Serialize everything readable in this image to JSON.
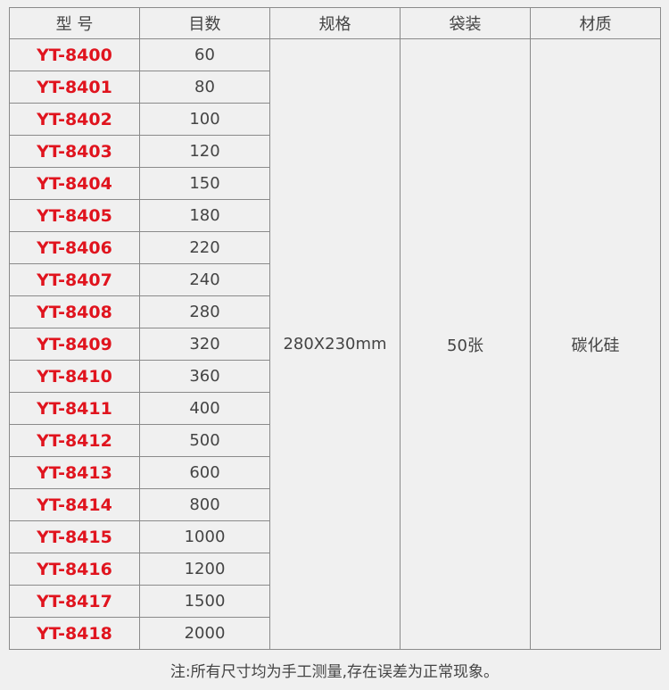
{
  "headers": [
    "型 号",
    "目数",
    "规格",
    "袋装",
    "材质"
  ],
  "rows": [
    {
      "model": "YT-8400",
      "mesh": "60"
    },
    {
      "model": "YT-8401",
      "mesh": "80"
    },
    {
      "model": "YT-8402",
      "mesh": "100"
    },
    {
      "model": "YT-8403",
      "mesh": "120"
    },
    {
      "model": "YT-8404",
      "mesh": "150"
    },
    {
      "model": "YT-8405",
      "mesh": "180"
    },
    {
      "model": "YT-8406",
      "mesh": "220"
    },
    {
      "model": "YT-8407",
      "mesh": "240"
    },
    {
      "model": "YT-8408",
      "mesh": "280"
    },
    {
      "model": "YT-8409",
      "mesh": "320"
    },
    {
      "model": "YT-8410",
      "mesh": "360"
    },
    {
      "model": "YT-8411",
      "mesh": "400"
    },
    {
      "model": "YT-8412",
      "mesh": "500"
    },
    {
      "model": "YT-8413",
      "mesh": "600"
    },
    {
      "model": "YT-8414",
      "mesh": "800"
    },
    {
      "model": "YT-8415",
      "mesh": "1000"
    },
    {
      "model": "YT-8416",
      "mesh": "1200"
    },
    {
      "model": "YT-8417",
      "mesh": "1500"
    },
    {
      "model": "YT-8418",
      "mesh": "2000"
    }
  ],
  "merged": {
    "spec": "280X230mm",
    "pack": "50张",
    "material": "碳化硅"
  },
  "note": "注:所有尺寸均为手工测量,存在误差为正常现象。",
  "colors": {
    "model_text": "#e0141e",
    "background": "#f0f0f0"
  }
}
